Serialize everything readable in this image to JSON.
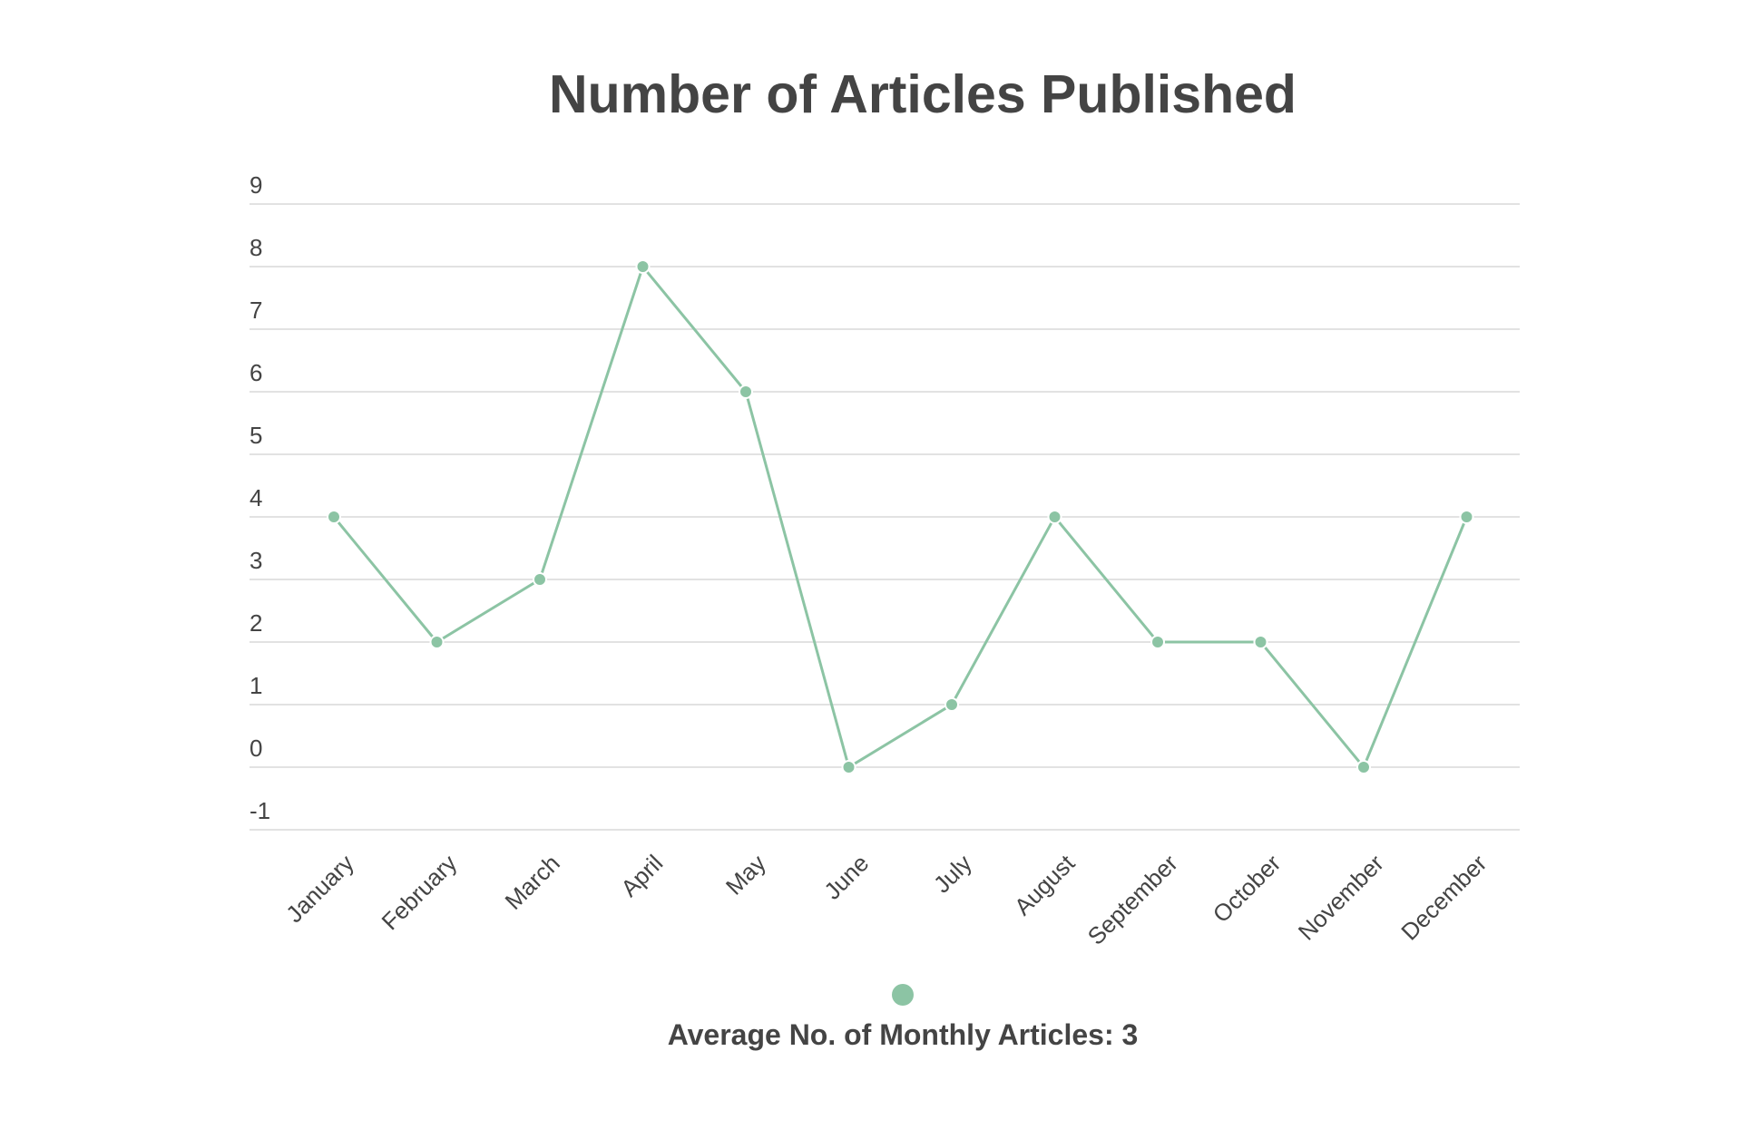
{
  "chart_data": {
    "type": "line",
    "title": "Number of Articles Published",
    "categories": [
      "January",
      "February",
      "March",
      "April",
      "May",
      "June",
      "July",
      "August",
      "September",
      "October",
      "November",
      "December"
    ],
    "series": [
      {
        "name": "Average No. of Monthly Articles: 3",
        "values": [
          4,
          2,
          3,
          8,
          6,
          0,
          1,
          4,
          2,
          2,
          0,
          4
        ]
      }
    ],
    "y_ticks": [
      9,
      8,
      7,
      6,
      5,
      4,
      3,
      2,
      1,
      0,
      -1
    ],
    "ylim": [
      -1,
      9
    ],
    "grid": true,
    "legend_position": "bottom",
    "color": "#8cc4a4"
  }
}
